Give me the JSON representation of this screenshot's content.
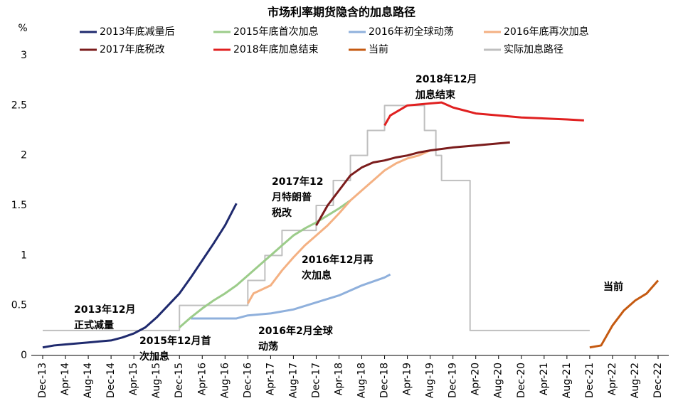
{
  "chart_data": {
    "type": "line",
    "title": "市场利率期货隐含的加息路径",
    "y_label": "%",
    "ylim": [
      0,
      3
    ],
    "yticks": [
      0,
      0.5,
      1,
      1.5,
      2,
      2.5,
      3
    ],
    "xlim": [
      "Dec-13",
      "Dec-22"
    ],
    "xticks": [
      "Dec-13",
      "Apr-14",
      "Aug-14",
      "Dec-14",
      "Apr-15",
      "Aug-15",
      "Dec-15",
      "Apr-16",
      "Aug-16",
      "Dec-16",
      "Apr-17",
      "Aug-17",
      "Dec-17",
      "Apr-18",
      "Aug-18",
      "Dec-18",
      "Apr-19",
      "Aug-19",
      "Dec-19",
      "Apr-20",
      "Aug-20",
      "Dec-20",
      "Apr-21",
      "Aug-21",
      "Dec-21",
      "Apr-22",
      "Aug-22",
      "Dec-22"
    ],
    "series": [
      {
        "name": "2013年底减量后",
        "color": "#1f2a6e",
        "x": [
          "Dec-13",
          "Feb-14",
          "Apr-14",
          "Jun-14",
          "Aug-14",
          "Oct-14",
          "Dec-14",
          "Feb-15",
          "Apr-15",
          "Jun-15",
          "Aug-15",
          "Oct-15",
          "Dec-15",
          "Feb-16",
          "Apr-16",
          "Jun-16",
          "Aug-16",
          "Oct-16"
        ],
        "values": [
          0.08,
          0.1,
          0.11,
          0.12,
          0.13,
          0.14,
          0.15,
          0.18,
          0.22,
          0.28,
          0.38,
          0.5,
          0.62,
          0.78,
          0.95,
          1.12,
          1.3,
          1.52
        ]
      },
      {
        "name": "2015年底首次加息",
        "color": "#9ccc8a",
        "x": [
          "Dec-15",
          "Feb-16",
          "Apr-16",
          "Jun-16",
          "Aug-16",
          "Oct-16",
          "Dec-16",
          "Feb-17",
          "Apr-17",
          "Jun-17",
          "Aug-17",
          "Oct-17",
          "Dec-17",
          "Feb-18",
          "Apr-18",
          "Jun-18"
        ],
        "values": [
          0.28,
          0.38,
          0.47,
          0.55,
          0.62,
          0.7,
          0.8,
          0.9,
          1.0,
          1.1,
          1.2,
          1.27,
          1.33,
          1.4,
          1.47,
          1.55
        ]
      },
      {
        "name": "2016年初全球动荡",
        "color": "#8fb0dc",
        "x": [
          "Feb-16",
          "Apr-16",
          "Jun-16",
          "Aug-16",
          "Oct-16",
          "Dec-16",
          "Apr-17",
          "Aug-17",
          "Dec-17",
          "Apr-18",
          "Aug-18",
          "Dec-18",
          "Jan-19"
        ],
        "values": [
          0.37,
          0.37,
          0.37,
          0.37,
          0.37,
          0.4,
          0.42,
          0.46,
          0.53,
          0.6,
          0.7,
          0.78,
          0.81
        ]
      },
      {
        "name": "2016年底再次加息",
        "color": "#f4b183",
        "x": [
          "Dec-16",
          "Jan-17",
          "Apr-17",
          "Jun-17",
          "Aug-17",
          "Oct-17",
          "Dec-17",
          "Feb-18",
          "Apr-18",
          "Jun-18",
          "Aug-18",
          "Oct-18",
          "Dec-18",
          "Feb-19",
          "Apr-19",
          "Jun-19",
          "Aug-19"
        ],
        "values": [
          0.52,
          0.62,
          0.7,
          0.85,
          0.98,
          1.1,
          1.2,
          1.3,
          1.42,
          1.55,
          1.65,
          1.75,
          1.85,
          1.92,
          1.97,
          2.0,
          2.05
        ]
      },
      {
        "name": "2017年底税改",
        "color": "#7b1c1c",
        "x": [
          "Dec-17",
          "Feb-18",
          "Apr-18",
          "Jun-18",
          "Aug-18",
          "Oct-18",
          "Dec-18",
          "Feb-19",
          "Apr-19",
          "Jun-19",
          "Aug-19",
          "Dec-19",
          "Apr-20",
          "Aug-20",
          "Oct-20"
        ],
        "values": [
          1.3,
          1.5,
          1.65,
          1.8,
          1.88,
          1.93,
          1.95,
          1.98,
          2.0,
          2.03,
          2.05,
          2.08,
          2.1,
          2.12,
          2.13
        ]
      },
      {
        "name": "2018年底加息结束",
        "color": "#e02020",
        "x": [
          "Dec-18",
          "Jan-19",
          "Apr-19",
          "Aug-19",
          "Oct-19",
          "Dec-19",
          "Feb-20",
          "Apr-20",
          "Aug-20",
          "Dec-20",
          "Apr-21",
          "Aug-21",
          "Nov-21"
        ],
        "values": [
          2.3,
          2.4,
          2.5,
          2.52,
          2.53,
          2.48,
          2.45,
          2.42,
          2.4,
          2.38,
          2.37,
          2.36,
          2.35
        ]
      },
      {
        "name": "当前",
        "color": "#c55a11",
        "x": [
          "Dec-21",
          "Feb-22",
          "Apr-22",
          "Jun-22",
          "Aug-22",
          "Oct-22",
          "Dec-22"
        ],
        "values": [
          0.08,
          0.1,
          0.3,
          0.45,
          0.55,
          0.62,
          0.75
        ]
      },
      {
        "name": "实际加息路径",
        "color": "#bfbfbf",
        "step": true,
        "x": [
          "Dec-13",
          "Dec-15",
          "Dec-16",
          "Mar-17",
          "Jun-17",
          "Dec-17",
          "Mar-18",
          "Jun-18",
          "Sep-18",
          "Dec-18",
          "Jul-19",
          "Sep-19",
          "Oct-19",
          "Mar-20",
          "Dec-21"
        ],
        "values": [
          0.25,
          0.5,
          0.75,
          1.0,
          1.25,
          1.5,
          1.75,
          2.0,
          2.25,
          2.5,
          2.25,
          2.0,
          1.75,
          0.25,
          0.25
        ]
      }
    ],
    "annotations": [
      {
        "lines": [
          "2013年12月",
          "正式减量"
        ],
        "color": "#1f2a6e"
      },
      {
        "lines": [
          "2015年12月首",
          "次加息"
        ],
        "color": "#9ccc8a"
      },
      {
        "lines": [
          "2016年2月全球",
          "动荡"
        ],
        "color": "#8fb0dc"
      },
      {
        "lines": [
          "2016年12月再",
          "次加息"
        ],
        "color": "#f4b183"
      },
      {
        "lines": [
          "2017年12",
          "月特朗普",
          "税改"
        ],
        "color": "#7b1c1c"
      },
      {
        "lines": [
          "2018年12月",
          "加息结束"
        ],
        "color": "#e02020"
      },
      {
        "lines": [
          "当前"
        ],
        "color": "#c55a11"
      }
    ]
  }
}
